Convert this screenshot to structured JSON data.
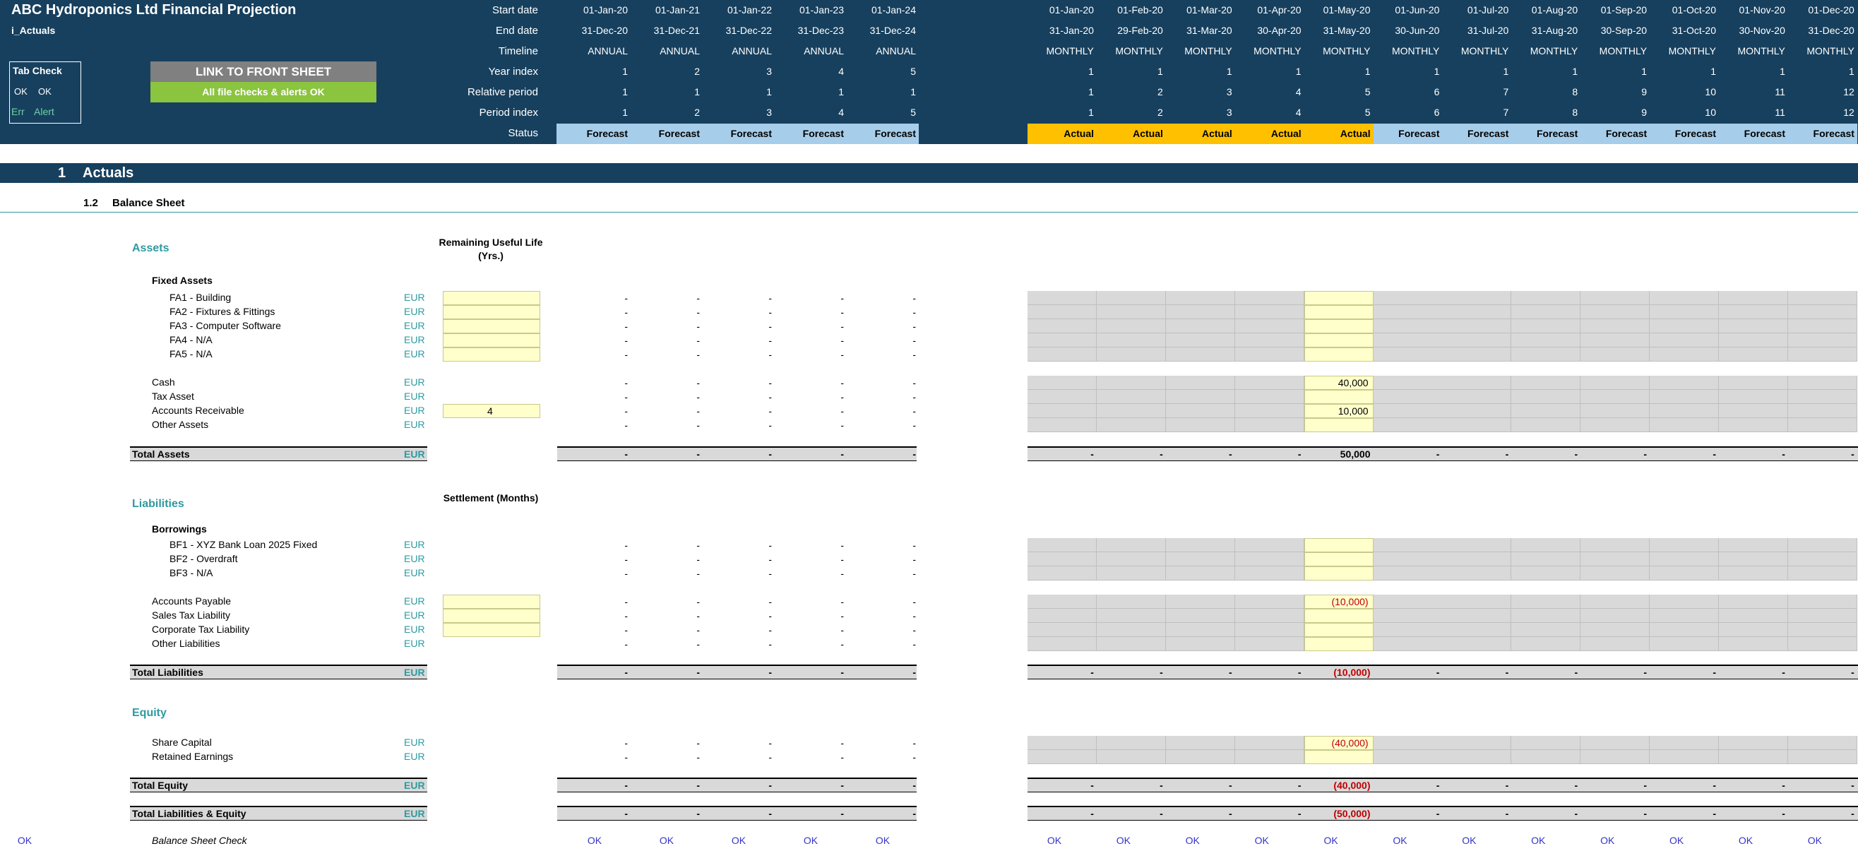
{
  "app_title": "ABC Hydroponics Ltd Financial Projection",
  "sheet_name": "i_Actuals",
  "tab_check": {
    "title": "Tab Check",
    "ok1": "OK",
    "ok2": "OK",
    "err": "Err",
    "alert": "Alert"
  },
  "buttons": {
    "link_front": "LINK TO FRONT SHEET",
    "file_checks": "All file checks & alerts OK"
  },
  "timeline_labels": {
    "start": "Start date",
    "end": "End date",
    "timeline": "Timeline",
    "year_index": "Year index",
    "relative_period": "Relative period",
    "period_index": "Period index",
    "status": "Status"
  },
  "annual": {
    "start": [
      "01-Jan-20",
      "01-Jan-21",
      "01-Jan-22",
      "01-Jan-23",
      "01-Jan-24"
    ],
    "end": [
      "31-Dec-20",
      "31-Dec-21",
      "31-Dec-22",
      "31-Dec-23",
      "31-Dec-24"
    ],
    "timeline": [
      "ANNUAL",
      "ANNUAL",
      "ANNUAL",
      "ANNUAL",
      "ANNUAL"
    ],
    "year_index": [
      "1",
      "2",
      "3",
      "4",
      "5"
    ],
    "relative": [
      "1",
      "1",
      "1",
      "1",
      "1"
    ],
    "period_index": [
      "1",
      "2",
      "3",
      "4",
      "5"
    ],
    "status": [
      "Forecast",
      "Forecast",
      "Forecast",
      "Forecast",
      "Forecast"
    ]
  },
  "monthly": {
    "start": [
      "01-Jan-20",
      "01-Feb-20",
      "01-Mar-20",
      "01-Apr-20",
      "01-May-20",
      "01-Jun-20",
      "01-Jul-20",
      "01-Aug-20",
      "01-Sep-20",
      "01-Oct-20",
      "01-Nov-20",
      "01-Dec-20"
    ],
    "end": [
      "31-Jan-20",
      "29-Feb-20",
      "31-Mar-20",
      "30-Apr-20",
      "31-May-20",
      "30-Jun-20",
      "31-Jul-20",
      "31-Aug-20",
      "30-Sep-20",
      "31-Oct-20",
      "30-Nov-20",
      "31-Dec-20"
    ],
    "timeline": [
      "MONTHLY",
      "MONTHLY",
      "MONTHLY",
      "MONTHLY",
      "MONTHLY",
      "MONTHLY",
      "MONTHLY",
      "MONTHLY",
      "MONTHLY",
      "MONTHLY",
      "MONTHLY",
      "MONTHLY"
    ],
    "year_index": [
      "1",
      "1",
      "1",
      "1",
      "1",
      "1",
      "1",
      "1",
      "1",
      "1",
      "1",
      "1"
    ],
    "relative": [
      "1",
      "2",
      "3",
      "4",
      "5",
      "6",
      "7",
      "8",
      "9",
      "10",
      "11",
      "12"
    ],
    "period_index": [
      "1",
      "2",
      "3",
      "4",
      "5",
      "6",
      "7",
      "8",
      "9",
      "10",
      "11",
      "12"
    ],
    "status": [
      "Actual",
      "Actual",
      "Actual",
      "Actual",
      "Actual",
      "Forecast",
      "Forecast",
      "Forecast",
      "Forecast",
      "Forecast",
      "Forecast",
      "Forecast"
    ]
  },
  "section": {
    "number": "1",
    "title": "Actuals",
    "sub_number": "1.2",
    "sub_title": "Balance Sheet"
  },
  "groups": {
    "assets": "Assets",
    "fixed_assets": "Fixed Assets",
    "useful_life": "Remaining Useful Life (Yrs.)",
    "liabilities": "Liabilities",
    "borrowings": "Borrowings",
    "settlement": "Settlement (Months)",
    "equity": "Equity"
  },
  "currency": "EUR",
  "dash": "-",
  "rows": {
    "fa1": "FA1 - Building",
    "fa2": "FA2 - Fixtures & Fittings",
    "fa3": "FA3 - Computer Software",
    "fa4": "FA4 - N/A",
    "fa5": "FA5 - N/A",
    "cash": "Cash",
    "tax_asset": "Tax Asset",
    "ar": "Accounts Receivable",
    "other_assets": "Other Assets",
    "total_assets": "Total Assets",
    "bf1": "BF1 - XYZ Bank Loan 2025 Fixed",
    "bf2": "BF2 - Overdraft",
    "bf3": "BF3 - N/A",
    "ap": "Accounts Payable",
    "sales_tax": "Sales Tax Liability",
    "corp_tax": "Corporate Tax Liability",
    "other_liab": "Other Liabilities",
    "total_liab": "Total Liabilities",
    "share_cap": "Share Capital",
    "retained": "Retained Earnings",
    "total_equity": "Total Equity",
    "total_le": "Total Liabilities & Equity",
    "bs_check": "Balance Sheet Check"
  },
  "values": {
    "ar_life": "4",
    "cash_may": "40,000",
    "ar_may": "10,000",
    "total_assets_may": "50,000",
    "ap_may": "(10,000)",
    "total_liab_may": "(10,000)",
    "share_cap_may": "(40,000)",
    "total_equity_may": "(40,000)",
    "total_le_may": "(50,000)"
  },
  "check_ok": "OK",
  "colors": {
    "header_bg": "#17405e",
    "forecast": "#a6cdea",
    "actual": "#ffc000",
    "teal": "#2e9aa0",
    "input_yellow": "#ffffcc",
    "gray_cell": "#d9d9d9"
  }
}
